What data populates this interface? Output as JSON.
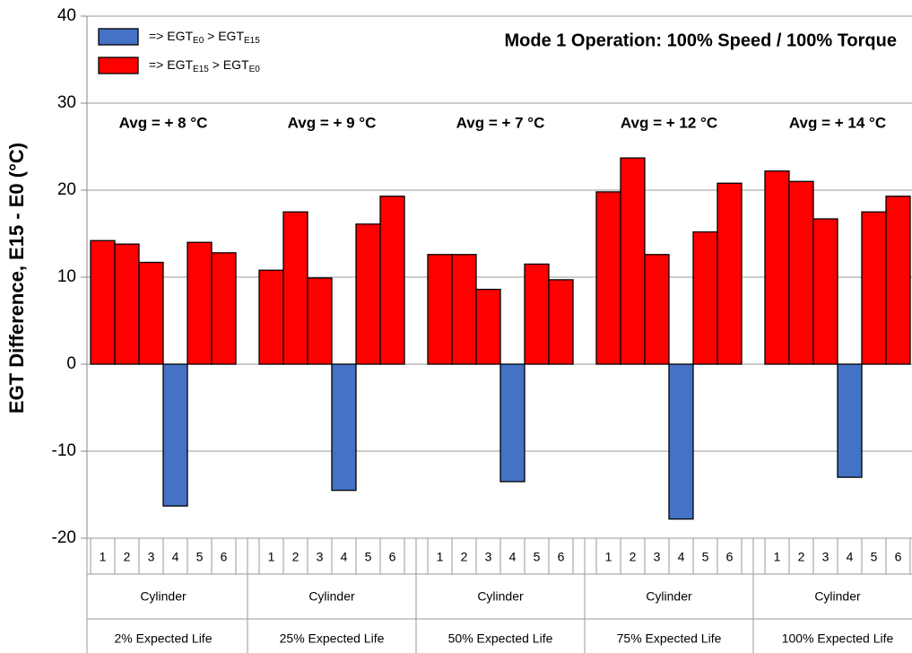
{
  "chart_data": {
    "type": "bar",
    "title": "Mode 1 Operation:  100% Speed / 100% Torque",
    "y_label": "EGT Difference, E15 - E0 (°C)",
    "ylim": [
      -20,
      40
    ],
    "yticks": [
      -20,
      -10,
      0,
      10,
      20,
      30,
      40
    ],
    "grid": true,
    "positive_color": "#ff0000",
    "negative_color": "#4472c4",
    "legend": [
      {
        "color": "#4472c4",
        "parts": [
          "=> EGT",
          "E0",
          " > EGT",
          "E15"
        ]
      },
      {
        "color": "#ff0000",
        "parts": [
          "=> EGT",
          "E15",
          " > EGT",
          "E0"
        ]
      }
    ],
    "groups": [
      {
        "label": "2% Expected Life",
        "sublabel": "Cylinder",
        "annotation": "Avg = + 8 °C",
        "categories": [
          "1",
          "2",
          "3",
          "4",
          "5",
          "6"
        ],
        "values": [
          14.2,
          13.8,
          11.7,
          -16.3,
          14.0,
          12.8
        ]
      },
      {
        "label": "25% Expected Life",
        "sublabel": "Cylinder",
        "annotation": "Avg = + 9 °C",
        "categories": [
          "1",
          "2",
          "3",
          "4",
          "5",
          "6"
        ],
        "values": [
          10.8,
          17.5,
          9.9,
          -14.5,
          16.1,
          19.3
        ]
      },
      {
        "label": "50% Expected Life",
        "sublabel": "Cylinder",
        "annotation": "Avg = + 7 °C",
        "categories": [
          "1",
          "2",
          "3",
          "4",
          "5",
          "6"
        ],
        "values": [
          12.6,
          12.6,
          8.6,
          -13.5,
          11.5,
          9.7
        ]
      },
      {
        "label": "75% Expected Life",
        "sublabel": "Cylinder",
        "annotation": "Avg = + 12 °C",
        "categories": [
          "1",
          "2",
          "3",
          "4",
          "5",
          "6"
        ],
        "values": [
          19.8,
          23.7,
          12.6,
          -17.8,
          15.2,
          20.8
        ]
      },
      {
        "label": "100% Expected Life",
        "sublabel": "Cylinder",
        "annotation": "Avg = + 14 °C",
        "categories": [
          "1",
          "2",
          "3",
          "4",
          "5",
          "6"
        ],
        "values": [
          22.2,
          21.0,
          16.7,
          -13.0,
          17.5,
          19.3
        ]
      }
    ]
  }
}
